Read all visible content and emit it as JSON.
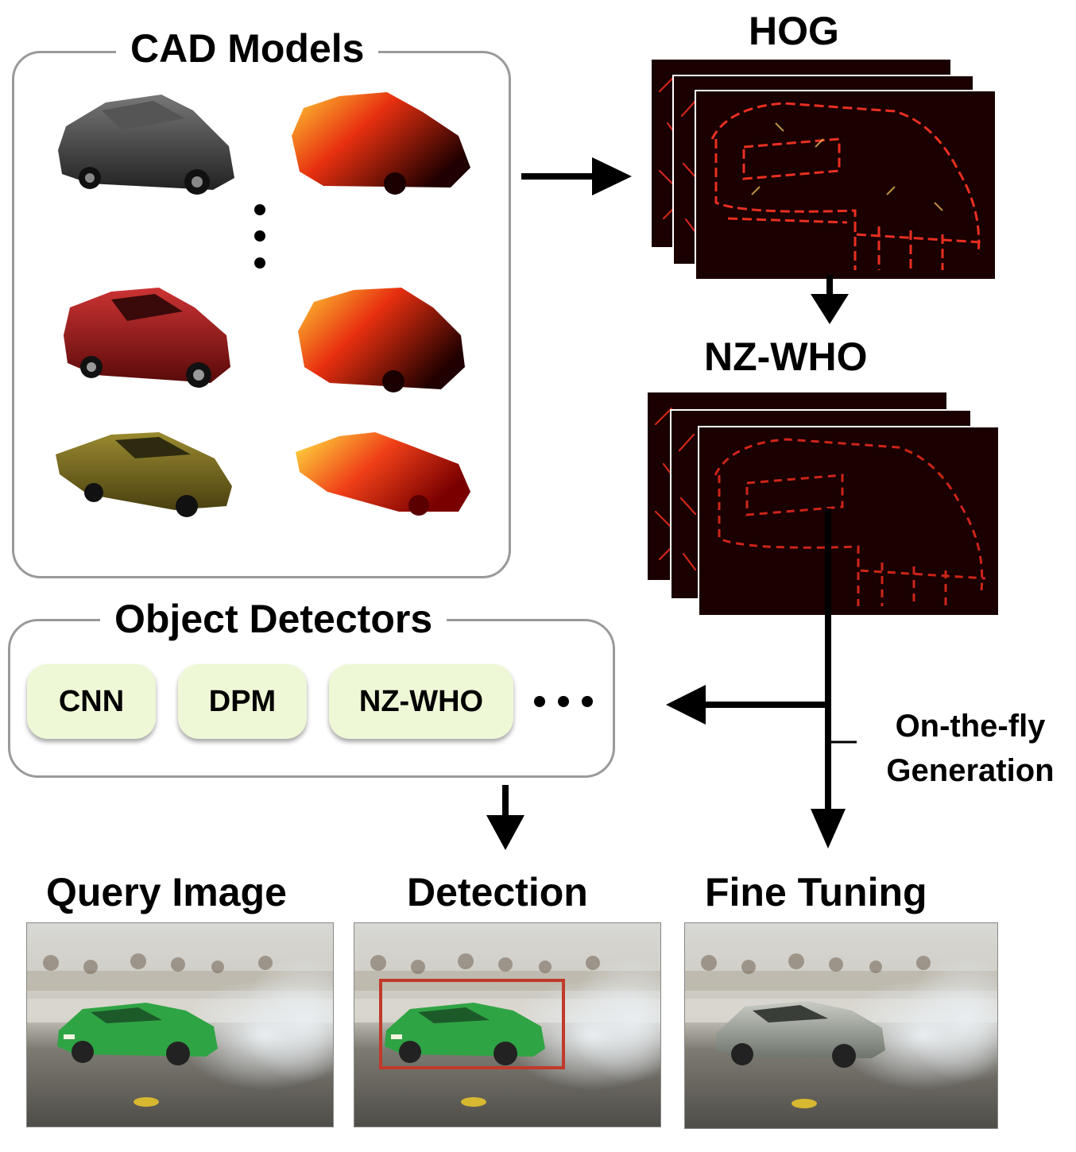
{
  "cad_models": {
    "title": "CAD Models",
    "rendered_icon": "car-render-icon",
    "depth_icon": "depth-map-icon",
    "car_colors": [
      "#3a3a3a",
      "#8e1515",
      "#6b5e1c"
    ]
  },
  "hog": {
    "title": "HOG"
  },
  "nzwho": {
    "title": "NZ-WHO"
  },
  "object_detectors": {
    "title": "Object Detectors",
    "items": [
      "CNN",
      "DPM",
      "NZ-WHO"
    ]
  },
  "on_the_fly": {
    "line1": "On-the-fly",
    "line2": "Generation"
  },
  "bottom": {
    "query_title": "Query Image",
    "detection_title": "Detection",
    "finetune_title": "Fine Tuning"
  },
  "colors": {
    "box_border": "#9a9a9a",
    "pill_fill": "#eef8d6",
    "detection_box": "#c0392b",
    "feature_stroke": "#ff3020"
  }
}
